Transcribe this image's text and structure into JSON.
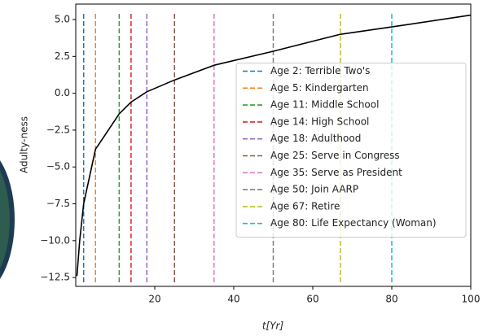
{
  "chart_data": {
    "type": "line",
    "xlabel": "t[Yr]",
    "ylabel": "Adulty-ness",
    "xlim": [
      0,
      100
    ],
    "ylim": [
      -13.1,
      6.05
    ],
    "xticks": [
      20,
      40,
      60,
      80,
      100
    ],
    "yticks": [
      {
        "value": 5,
        "label": "5.0"
      },
      {
        "value": 2.5,
        "label": "2.5"
      },
      {
        "value": 0,
        "label": "0.0"
      },
      {
        "value": -2.5,
        "label": "−2.5"
      },
      {
        "value": -5,
        "label": "−5.0"
      },
      {
        "value": -7.5,
        "label": "−7.5"
      },
      {
        "value": -10,
        "label": "−10.0"
      },
      {
        "value": -12.5,
        "label": "−12.5"
      }
    ],
    "grid": false,
    "legend": "center right",
    "series": [
      {
        "color": "#000000",
        "x": [
          0.3,
          1,
          2,
          5,
          11,
          14,
          18,
          25,
          35,
          50,
          67,
          80,
          100
        ],
        "values": [
          -12.4,
          -10,
          -7.5,
          -3.8,
          -1.4,
          -0.6,
          0.1,
          0.9,
          1.9,
          2.85,
          4.0,
          4.5,
          5.3
        ]
      }
    ],
    "markers": [
      {
        "name": "Age 2: Terrible Two's",
        "x": 2,
        "color": "#1f77b4"
      },
      {
        "name": "Age 5: Kindergarten",
        "x": 5,
        "color": "#ff7f0e"
      },
      {
        "name": "Age 11: Middle School",
        "x": 11,
        "color": "#2ca02c"
      },
      {
        "name": "Age 14: High School",
        "x": 14,
        "color": "#d62728"
      },
      {
        "name": "Age 18: Adulthood",
        "x": 18,
        "color": "#9467bd"
      },
      {
        "name": "Age 25: Serve in Congress",
        "x": 25,
        "color": "#8c564b"
      },
      {
        "name": "Age 35: Serve as President",
        "x": 35,
        "color": "#e377c2"
      },
      {
        "name": "Age 50: Join AARP",
        "x": 50,
        "color": "#7f7f7f"
      },
      {
        "name": "Age 67: Retire",
        "x": 67,
        "color": "#bcbd22"
      },
      {
        "name": "Age 80: Life Expectancy (Woman)",
        "x": 80,
        "color": "#17becf"
      }
    ]
  }
}
